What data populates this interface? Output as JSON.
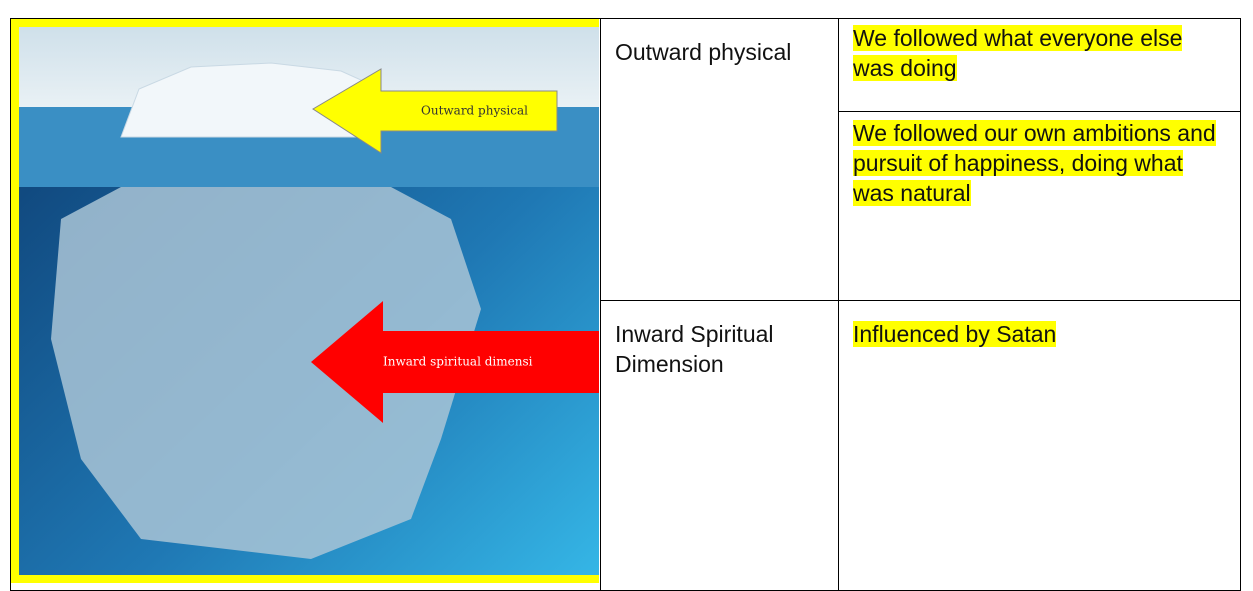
{
  "image": {
    "labels": [
      "Outward physical",
      "Inward spiritual dimensi"
    ]
  },
  "table": {
    "groups": [
      {
        "label": "Outward physical",
        "items": [
          "We followed what everyone else was doing",
          "We followed our own ambitions and pursuit of happiness, doing what was natural"
        ]
      },
      {
        "label": "Inward Spiritual Dimension",
        "items": [
          "Influenced by Satan"
        ]
      }
    ]
  }
}
